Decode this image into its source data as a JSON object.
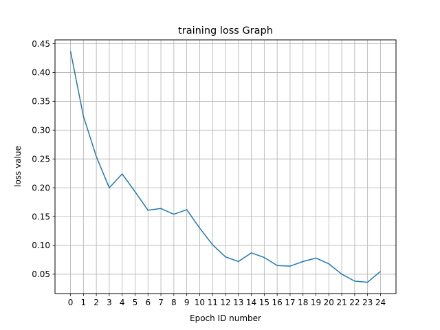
{
  "chart_data": {
    "type": "line",
    "title": "training loss Graph",
    "xlabel": "Epoch ID number",
    "ylabel": "loss value",
    "grid": true,
    "x": [
      0,
      1,
      2,
      3,
      4,
      5,
      6,
      7,
      8,
      9,
      10,
      11,
      12,
      13,
      14,
      15,
      16,
      17,
      18,
      19,
      20,
      21,
      22,
      23,
      24
    ],
    "x_tick_labels": [
      "0",
      "1",
      "2",
      "3",
      "4",
      "5",
      "6",
      "7",
      "8",
      "9",
      "10",
      "11",
      "12",
      "13",
      "14",
      "15",
      "16",
      "17",
      "18",
      "19",
      "20",
      "21",
      "22",
      "23",
      "24"
    ],
    "y_tick_values": [
      0.05,
      0.1,
      0.15,
      0.2,
      0.25,
      0.3,
      0.35,
      0.4,
      0.45
    ],
    "y_tick_labels": [
      "0.05",
      "0.10",
      "0.15",
      "0.20",
      "0.25",
      "0.30",
      "0.35",
      "0.40",
      "0.45"
    ],
    "xlim": [
      -1.2,
      25.2
    ],
    "ylim": [
      0.0164,
      0.4566
    ],
    "series": [
      {
        "color": "#1f77b4",
        "values": [
          0.437,
          0.324,
          0.254,
          0.2,
          0.224,
          0.193,
          0.161,
          0.164,
          0.154,
          0.162,
          0.13,
          0.101,
          0.08,
          0.072,
          0.087,
          0.079,
          0.065,
          0.064,
          0.072,
          0.078,
          0.068,
          0.05,
          0.038,
          0.036,
          0.055
        ]
      }
    ]
  }
}
